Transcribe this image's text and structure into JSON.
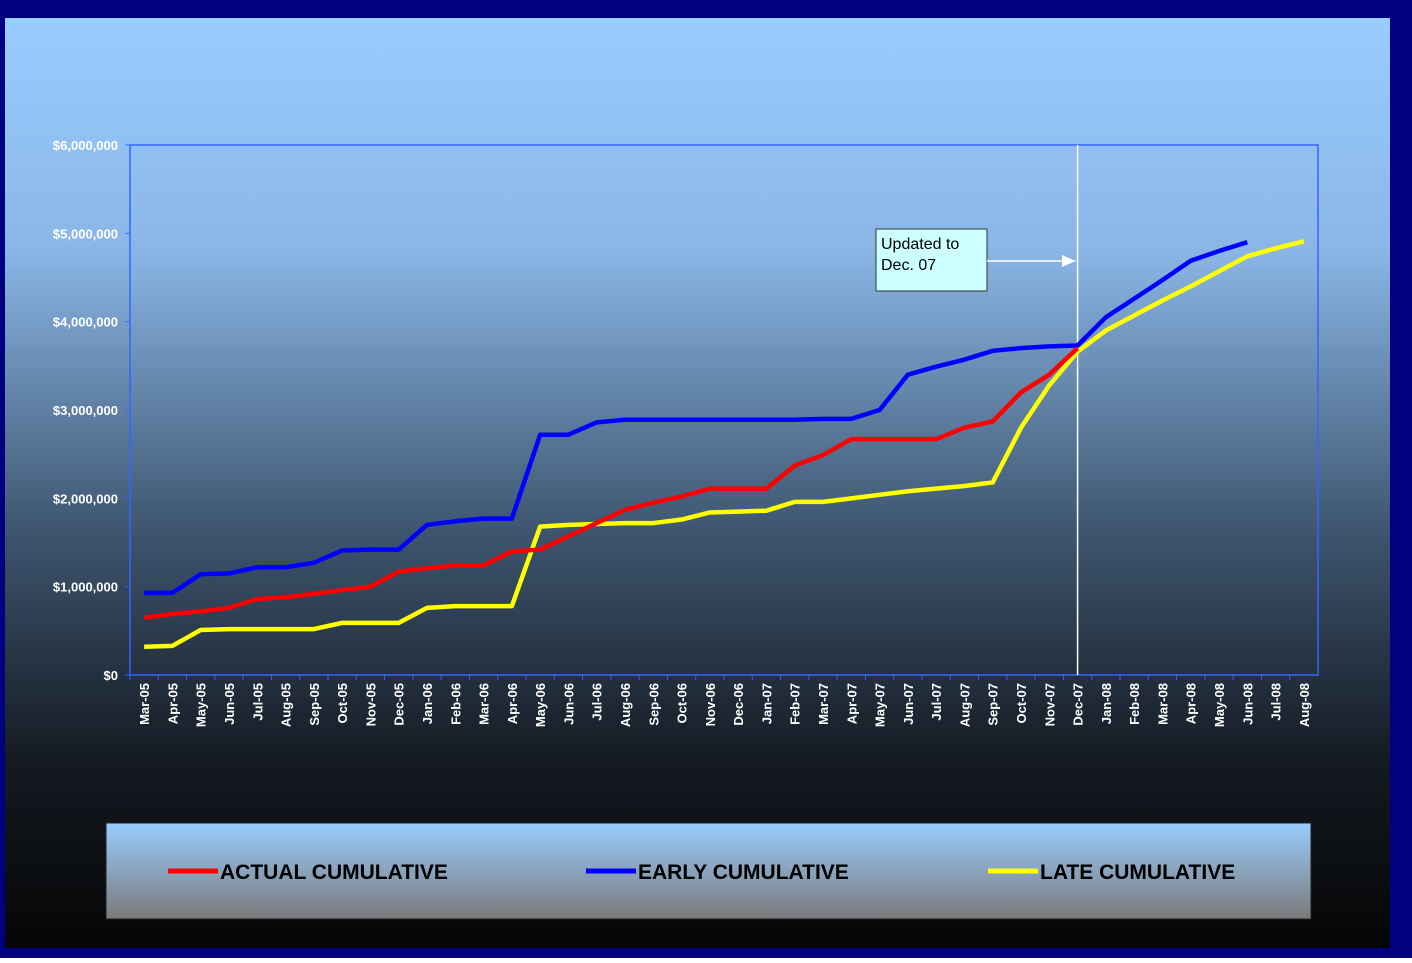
{
  "chart_data": {
    "type": "line",
    "categories": [
      "Mar-05",
      "Apr-05",
      "May-05",
      "Jun-05",
      "Jul-05",
      "Aug-05",
      "Sep-05",
      "Oct-05",
      "Nov-05",
      "Dec-05",
      "Jan-06",
      "Feb-06",
      "Mar-06",
      "Apr-06",
      "May-06",
      "Jun-06",
      "Jul-06",
      "Aug-06",
      "Sep-06",
      "Oct-06",
      "Nov-06",
      "Dec-06",
      "Jan-07",
      "Feb-07",
      "Mar-07",
      "Apr-07",
      "May-07",
      "Jun-07",
      "Jul-07",
      "Aug-07",
      "Sep-07",
      "Oct-07",
      "Nov-07",
      "Dec-07",
      "Jan-08",
      "Feb-08",
      "Mar-08",
      "Apr-08",
      "May-08",
      "Jun-08",
      "Jul-08",
      "Aug-08"
    ],
    "series": [
      {
        "name": "ACTUAL CUMULATIVE",
        "color": "#ff0000",
        "values": [
          650000,
          690000,
          720000,
          760000,
          860000,
          880000,
          920000,
          960000,
          1000000,
          1170000,
          1210000,
          1240000,
          1240000,
          1400000,
          1420000,
          1570000,
          1720000,
          1870000,
          1950000,
          2020000,
          2110000,
          2110000,
          2110000,
          2370000,
          2490000,
          2670000,
          2670000,
          2670000,
          2670000,
          2800000,
          2870000,
          3200000,
          3400000,
          3700000,
          null,
          null,
          null,
          null,
          null,
          null,
          null,
          null
        ]
      },
      {
        "name": "EARLY CUMULATIVE",
        "color": "#0000ff",
        "values": [
          930000,
          930000,
          1140000,
          1150000,
          1220000,
          1220000,
          1270000,
          1410000,
          1420000,
          1420000,
          1700000,
          1740000,
          1770000,
          1770000,
          2720000,
          2720000,
          2860000,
          2890000,
          2890000,
          2890000,
          2890000,
          2890000,
          2890000,
          2890000,
          2900000,
          2900000,
          3000000,
          3400000,
          3490000,
          3570000,
          3670000,
          3700000,
          3720000,
          3730000,
          4050000,
          4260000,
          4470000,
          4690000,
          4800000,
          4900000,
          null,
          null
        ]
      },
      {
        "name": "LATE CUMULATIVE",
        "color": "#ffff00",
        "values": [
          320000,
          330000,
          510000,
          520000,
          520000,
          520000,
          520000,
          590000,
          590000,
          590000,
          760000,
          780000,
          780000,
          780000,
          1680000,
          1700000,
          1710000,
          1720000,
          1720000,
          1760000,
          1840000,
          1850000,
          1860000,
          1960000,
          1960000,
          2000000,
          2040000,
          2080000,
          2110000,
          2140000,
          2180000,
          2800000,
          3280000,
          3660000,
          3900000,
          4070000,
          4240000,
          4400000,
          4570000,
          4740000,
          4830000,
          4910000
        ]
      }
    ],
    "ylim": [
      0,
      6000000
    ],
    "yticks": [
      {
        "value": 0,
        "label": "$0"
      },
      {
        "value": 1000000,
        "label": "$1,000,000"
      },
      {
        "value": 2000000,
        "label": "$2,000,000"
      },
      {
        "value": 3000000,
        "label": "$3,000,000"
      },
      {
        "value": 4000000,
        "label": "$4,000,000"
      },
      {
        "value": 5000000,
        "label": "$5,000,000"
      },
      {
        "value": 6000000,
        "label": "$6,000,000"
      }
    ],
    "annotation": [
      "Updated to",
      "Dec. 07"
    ],
    "legend": "bottom"
  }
}
